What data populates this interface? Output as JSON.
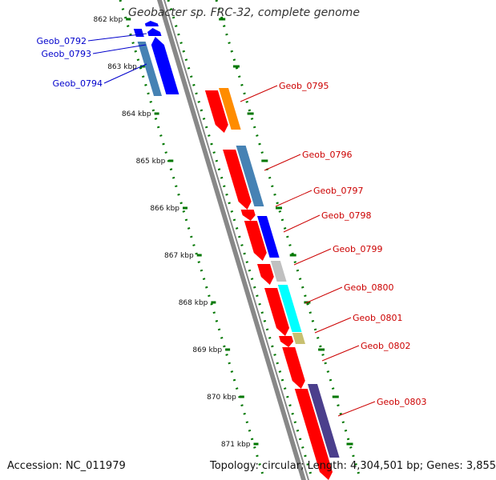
{
  "title": "Geobacter sp. FRC-32, complete genome",
  "accession": "Accession: NC_011979",
  "summary": "Topology: circular; Length: 4,304,501 bp; Genes: 3,855",
  "colors": {
    "forward_label": "#0000cc",
    "reverse_label": "#cc0000",
    "backbone": "#888888",
    "tick": "#007700"
  },
  "ticks": [
    {
      "label": "862 kbp"
    },
    {
      "label": "863 kbp"
    },
    {
      "label": "864 kbp"
    },
    {
      "label": "865 kbp"
    },
    {
      "label": "866 kbp"
    },
    {
      "label": "867 kbp"
    },
    {
      "label": "868 kbp"
    },
    {
      "label": "869 kbp"
    },
    {
      "label": "870 kbp"
    },
    {
      "label": "871 kbp"
    }
  ],
  "genes": [
    {
      "name": "Geob_0792",
      "strand": "forward"
    },
    {
      "name": "Geob_0793",
      "strand": "forward"
    },
    {
      "name": "Geob_0794",
      "strand": "forward"
    },
    {
      "name": "Geob_0795",
      "strand": "reverse"
    },
    {
      "name": "Geob_0796",
      "strand": "reverse"
    },
    {
      "name": "Geob_0797",
      "strand": "reverse"
    },
    {
      "name": "Geob_0798",
      "strand": "reverse"
    },
    {
      "name": "Geob_0799",
      "strand": "reverse"
    },
    {
      "name": "Geob_0800",
      "strand": "reverse"
    },
    {
      "name": "Geob_0801",
      "strand": "reverse"
    },
    {
      "name": "Geob_0802",
      "strand": "reverse"
    },
    {
      "name": "Geob_0803",
      "strand": "reverse"
    }
  ]
}
